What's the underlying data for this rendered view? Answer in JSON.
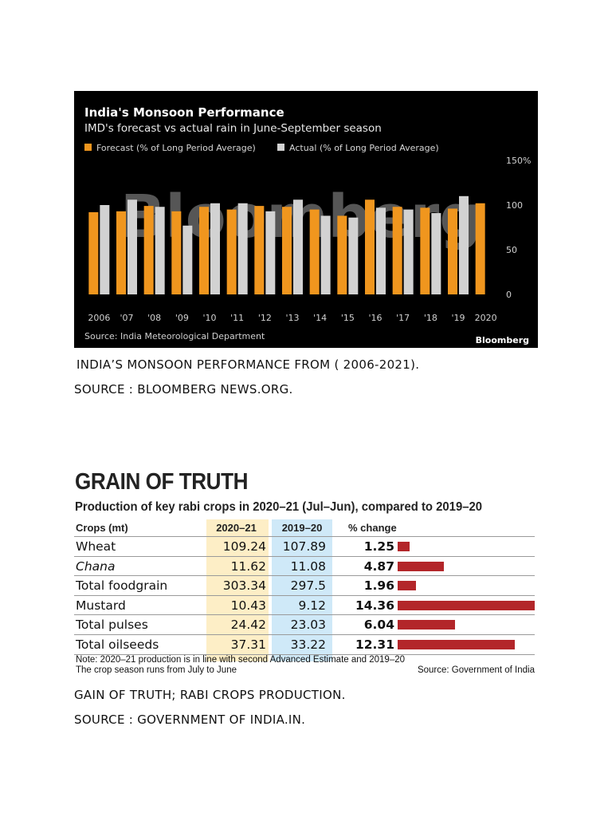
{
  "monsoon_caption": "INDIA’S MONSOON PERFORMANCE FROM ( 2006-2021).",
  "monsoon_source_caption": "SOURCE : BLOOMBERG NEWS.ORG.",
  "grain_caption": "GAIN OF TRUTH; RABI CROPS PRODUCTION.",
  "grain_source_caption": "SOURCE : GOVERNMENT OF INDIA.IN.",
  "colors": {
    "forecast": "#f0961e",
    "actual": "#d2d2d2",
    "bar_red": "#b3262a",
    "col_2020": "#fdeec6",
    "col_2019": "#cfe9f8"
  },
  "chart_data": [
    {
      "type": "bar",
      "title": "India's Monsoon Performance",
      "subtitle": "IMD's forecast vs actual rain in June-September season",
      "legend": [
        "Forecast (% of Long Period Average)",
        "Actual (% of Long Period Average)"
      ],
      "legend_position": "top-left",
      "categories": [
        "2006",
        "'07",
        "'08",
        "'09",
        "'10",
        "'11",
        "'12",
        "'13",
        "'14",
        "'15",
        "'16",
        "'17",
        "'18",
        "'19",
        "2020"
      ],
      "series": [
        {
          "name": "Forecast (% of Long Period Average)",
          "values": [
            92,
            93,
            99,
            93,
            98,
            95,
            99,
            98,
            95,
            88,
            106,
            98,
            97,
            96,
            102
          ]
        },
        {
          "name": "Actual (% of Long Period Average)",
          "values": [
            100,
            106,
            98,
            77,
            102,
            102,
            93,
            106,
            88,
            86,
            97,
            95,
            91,
            110,
            null
          ]
        }
      ],
      "y_ticks": [
        "0",
        "50",
        "100",
        "150%"
      ],
      "ylim": [
        0,
        150
      ],
      "y_axis_side": "right",
      "source": "Source: India Meteorological Department",
      "brand": "Bloomberg",
      "watermark": "Bloomberg"
    },
    {
      "type": "table",
      "title": "GRAIN OF TRUTH",
      "subtitle": "Production of key rabi crops in 2020–21 (Jul–Jun), compared to 2019–20",
      "columns": [
        "Crops (mt)",
        "2020–21",
        "2019–20",
        "% change"
      ],
      "rows": [
        {
          "crop": "Wheat",
          "italic": false,
          "v2020": "109.24",
          "v2019": "107.89",
          "pct": "1.25",
          "pct_value": 1.25
        },
        {
          "crop": "Chana",
          "italic": true,
          "v2020": "11.62",
          "v2019": "11.08",
          "pct": "4.87",
          "pct_value": 4.87
        },
        {
          "crop": "Total foodgrain",
          "italic": false,
          "v2020": "303.34",
          "v2019": "297.5",
          "pct": "1.96",
          "pct_value": 1.96
        },
        {
          "crop": "Mustard",
          "italic": false,
          "v2020": "10.43",
          "v2019": "9.12",
          "pct": "14.36",
          "pct_value": 14.36
        },
        {
          "crop": "Total pulses",
          "italic": false,
          "v2020": "24.42",
          "v2019": "23.03",
          "pct": "6.04",
          "pct_value": 6.04
        },
        {
          "crop": "Total oilseeds",
          "italic": false,
          "v2020": "37.31",
          "v2019": "33.22",
          "pct": "12.31",
          "pct_value": 12.31
        }
      ],
      "note": "Note: 2020–21 production is in line with second Advanced Estimate and 2019–20 The crop season runs from July to June",
      "source": "Source: Government of India"
    }
  ]
}
